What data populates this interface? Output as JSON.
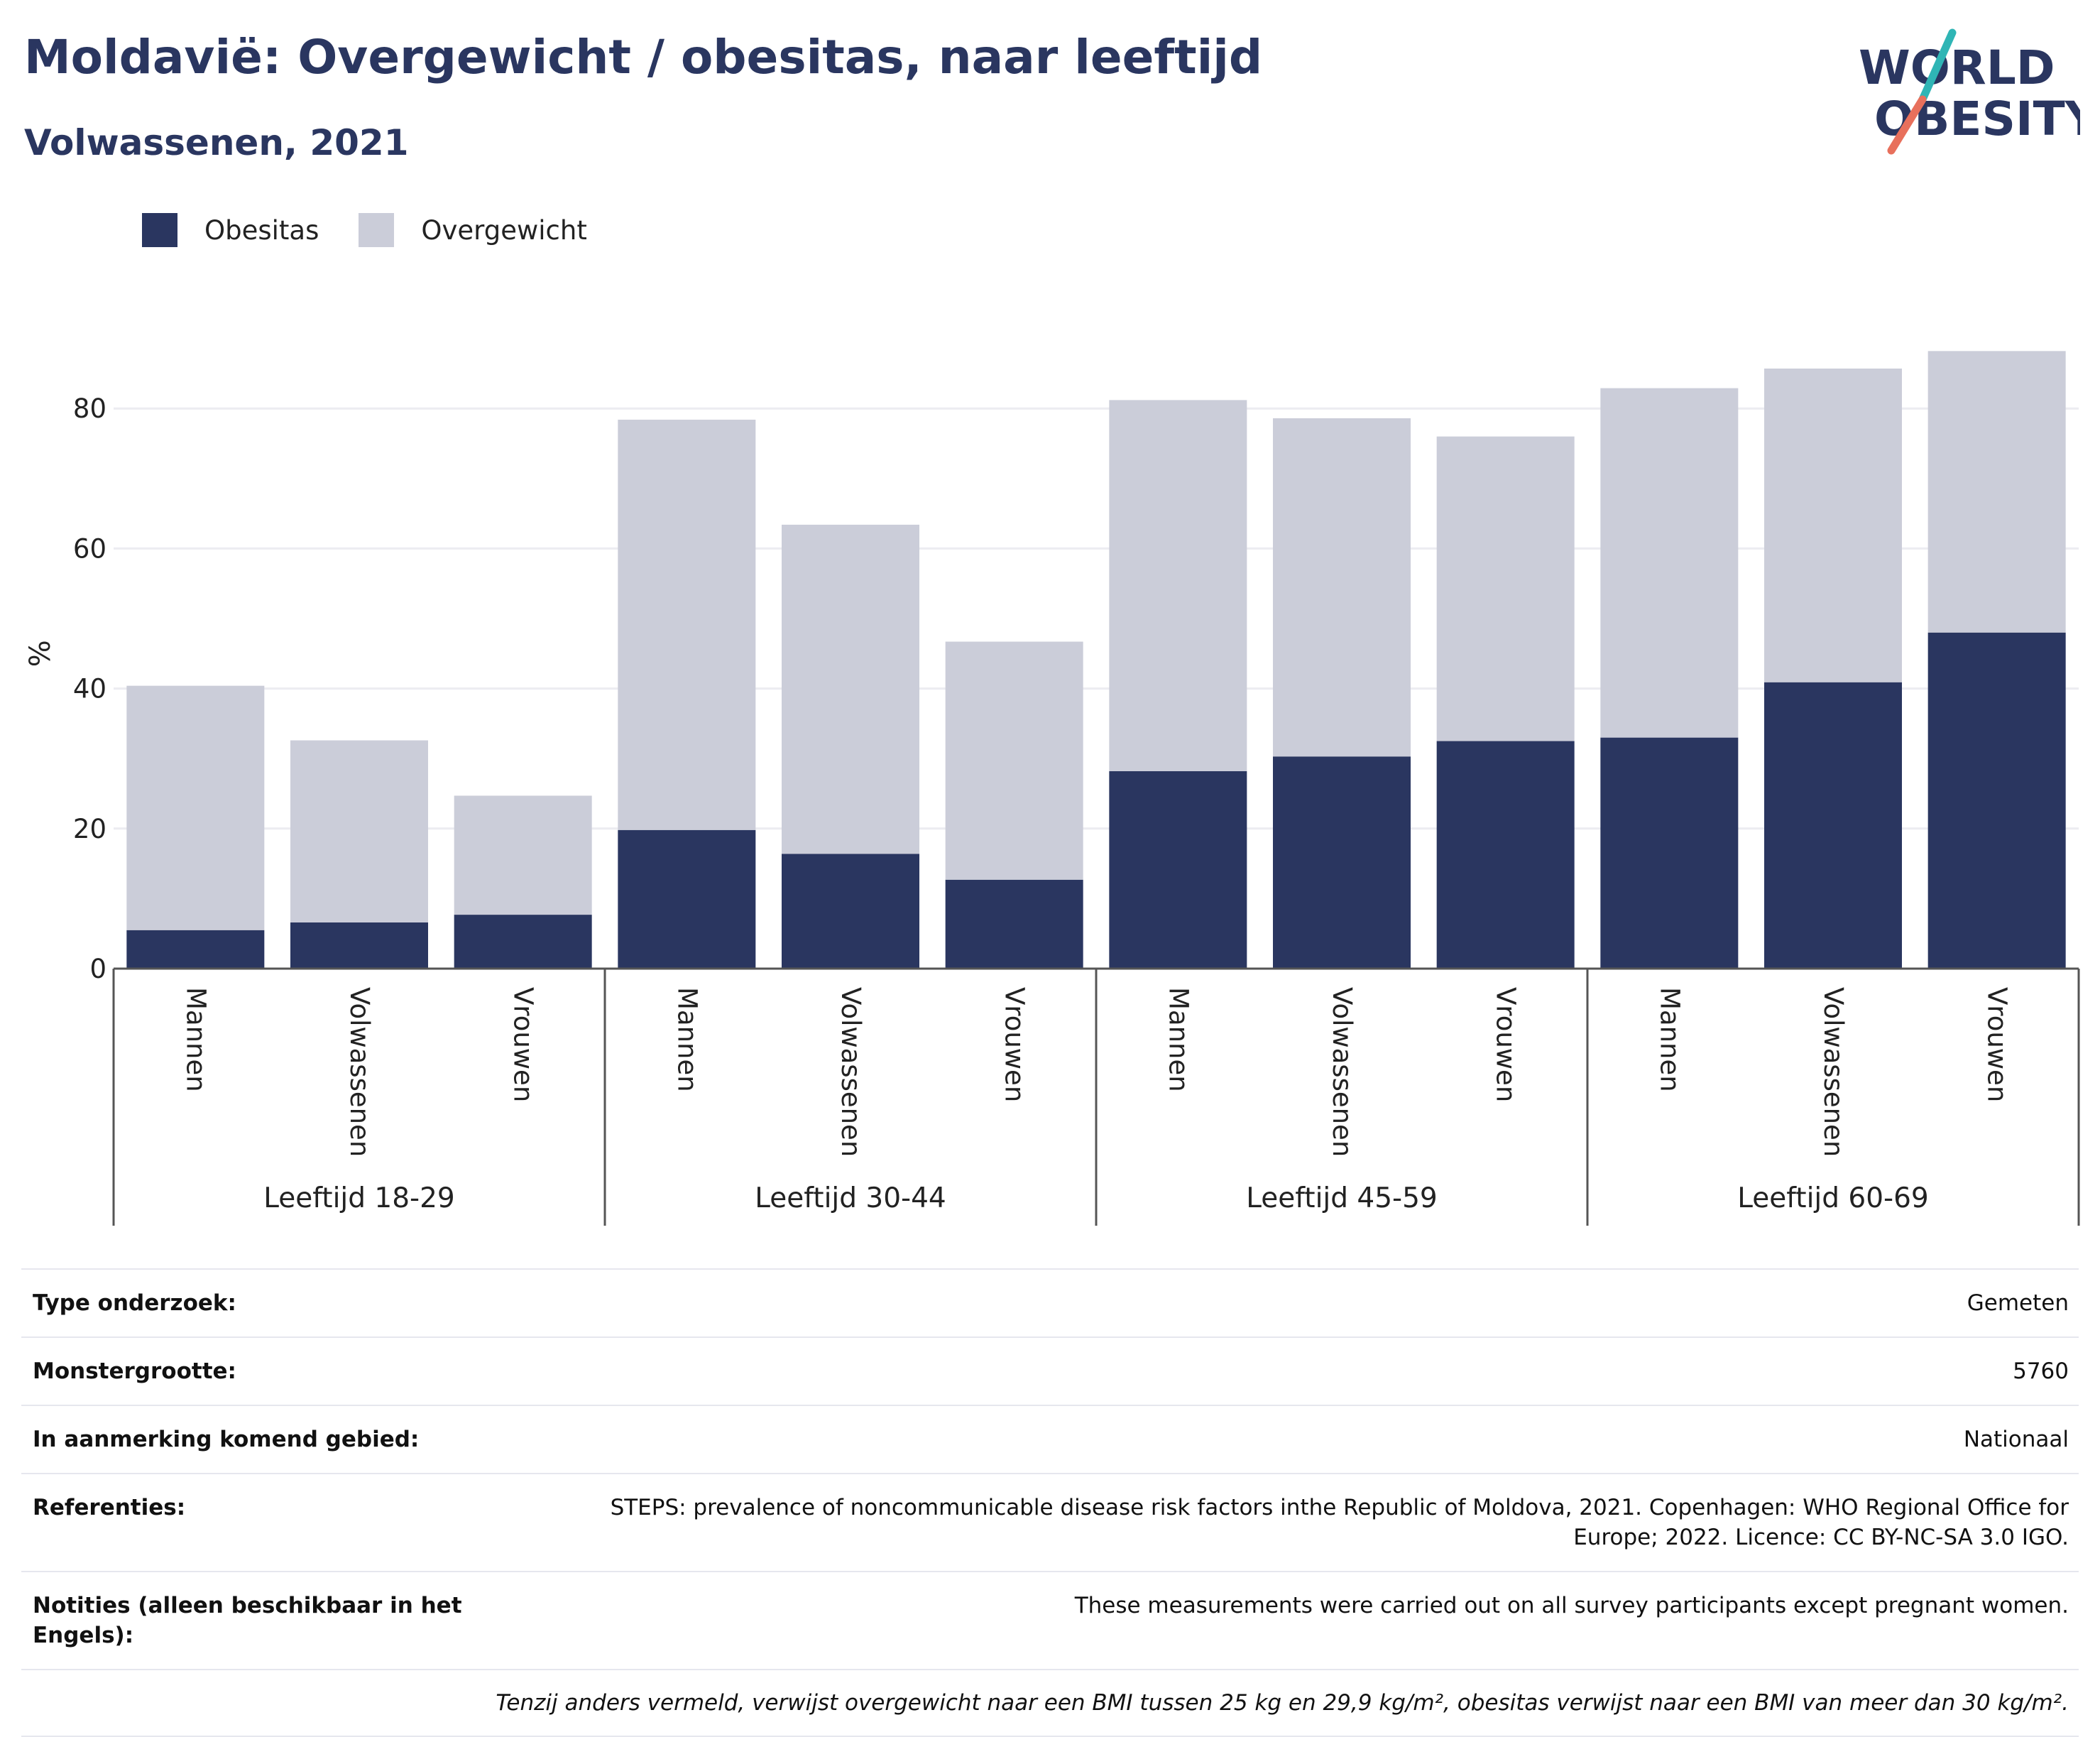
{
  "header": {
    "title": "Moldavië: Overgewicht / obesitas, naar leeftijd",
    "subtitle": "Volwassenen, 2021"
  },
  "logo": {
    "line1": "WORLD",
    "line2": "OBESITY",
    "accent_teal": "#2fb5b5",
    "accent_coral": "#e8705c",
    "color": "#2a3660"
  },
  "legend": [
    {
      "label": "Obesitas",
      "color": "#2a3660"
    },
    {
      "label": "Overgewicht",
      "color": "#cbcdd9"
    }
  ],
  "chart_data": {
    "type": "bar",
    "stacked": true,
    "ylabel": "%",
    "ylim": [
      0,
      90
    ],
    "yticks": [
      0,
      20,
      40,
      60,
      80
    ],
    "grid": true,
    "legend_position": "top-left",
    "groups": [
      "Leeftijd 18-29",
      "Leeftijd 30-44",
      "Leeftijd 45-59",
      "Leeftijd 60-69"
    ],
    "categories": [
      "Mannen",
      "Volwassenen",
      "Vrouwen",
      "Mannen",
      "Volwassenen",
      "Vrouwen",
      "Mannen",
      "Volwassenen",
      "Vrouwen",
      "Mannen",
      "Volwassenen",
      "Vrouwen"
    ],
    "series": [
      {
        "name": "Obesitas",
        "color": "#2a3660",
        "values": [
          5.5,
          6.6,
          7.7,
          19.8,
          16.4,
          12.7,
          28.2,
          30.3,
          32.5,
          33.0,
          40.9,
          48.0
        ]
      },
      {
        "name": "Overgewicht",
        "color": "#cbcdd9",
        "values": [
          34.9,
          26.0,
          17.0,
          58.6,
          47.0,
          34.0,
          53.0,
          48.3,
          43.5,
          49.9,
          44.8,
          40.2
        ]
      }
    ]
  },
  "info": [
    {
      "key": "Type onderzoek:",
      "value": "Gemeten"
    },
    {
      "key": "Monstergrootte:",
      "value": "5760"
    },
    {
      "key": "In aanmerking komend gebied:",
      "value": "Nationaal"
    },
    {
      "key": "Referenties:",
      "value": "STEPS: prevalence of noncommunicable disease risk factors inthe Republic of Moldova, 2021. Copenhagen: WHO Regional Office for Europe; 2022. Licence: CC BY-NC-SA 3.0 IGO."
    },
    {
      "key": "Notities (alleen beschikbaar in het Engels):",
      "value": "These measurements were carried out on all survey participants except pregnant women."
    }
  ],
  "footnote": "Tenzij anders vermeld, verwijst overgewicht naar een BMI tussen 25 kg en 29,9 kg/m², obesitas verwijst naar een BMI van meer dan 30 kg/m²."
}
